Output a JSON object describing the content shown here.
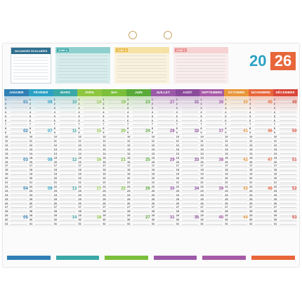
{
  "year": {
    "part_a": "20",
    "part_b": "26"
  },
  "vacations": {
    "title": "VACANCES SCOLAIRES"
  },
  "zones": [
    {
      "label": "ZONE A",
      "color": "#8fd0cf",
      "tag": "#3aa8a6"
    },
    {
      "label": "ZONE B",
      "color": "#f6e2a6",
      "tag": "#e6b53c"
    },
    {
      "label": "ZONE C",
      "color": "#f6d2d2",
      "tag": "#e88a8a"
    }
  ],
  "months": [
    {
      "name": "JANVIER",
      "color": "#2f7fb5",
      "weeks": [
        "01",
        "02",
        "03",
        "04",
        "05"
      ]
    },
    {
      "name": "FÉVRIER",
      "color": "#2aa1c4",
      "weeks": [
        "06",
        "07",
        "08",
        "09"
      ]
    },
    {
      "name": "MARS",
      "color": "#3aa8a6",
      "weeks": [
        "10",
        "11",
        "12",
        "13",
        "14"
      ]
    },
    {
      "name": "AVRIL",
      "color": "#8ec63f",
      "weeks": [
        "14",
        "15",
        "16",
        "17",
        "18"
      ]
    },
    {
      "name": "MAI",
      "color": "#7bbf3a",
      "weeks": [
        "19",
        "20",
        "21",
        "22"
      ]
    },
    {
      "name": "JUIN",
      "color": "#5aaa3a",
      "weeks": [
        "23",
        "24",
        "25",
        "26",
        "27"
      ]
    },
    {
      "name": "JUILLET",
      "color": "#9b59a8",
      "weeks": [
        "27",
        "28",
        "29",
        "30",
        "31"
      ]
    },
    {
      "name": "AOÛT",
      "color": "#8a4a9a",
      "weeks": [
        "31",
        "32",
        "33",
        "34",
        "35"
      ]
    },
    {
      "name": "SEPTEMBRE",
      "color": "#a65aa6",
      "weeks": [
        "36",
        "37",
        "38",
        "39",
        "40"
      ]
    },
    {
      "name": "OCTOBRE",
      "color": "#e8963a",
      "weeks": [
        "40",
        "41",
        "42",
        "43",
        "44"
      ]
    },
    {
      "name": "NOVEMBRE",
      "color": "#e8663a",
      "weeks": [
        "45",
        "46",
        "47",
        "48"
      ]
    },
    {
      "name": "DÉCEMBRE",
      "color": "#d9463a",
      "weeks": [
        "49",
        "50",
        "51",
        "52",
        "53"
      ]
    }
  ]
}
